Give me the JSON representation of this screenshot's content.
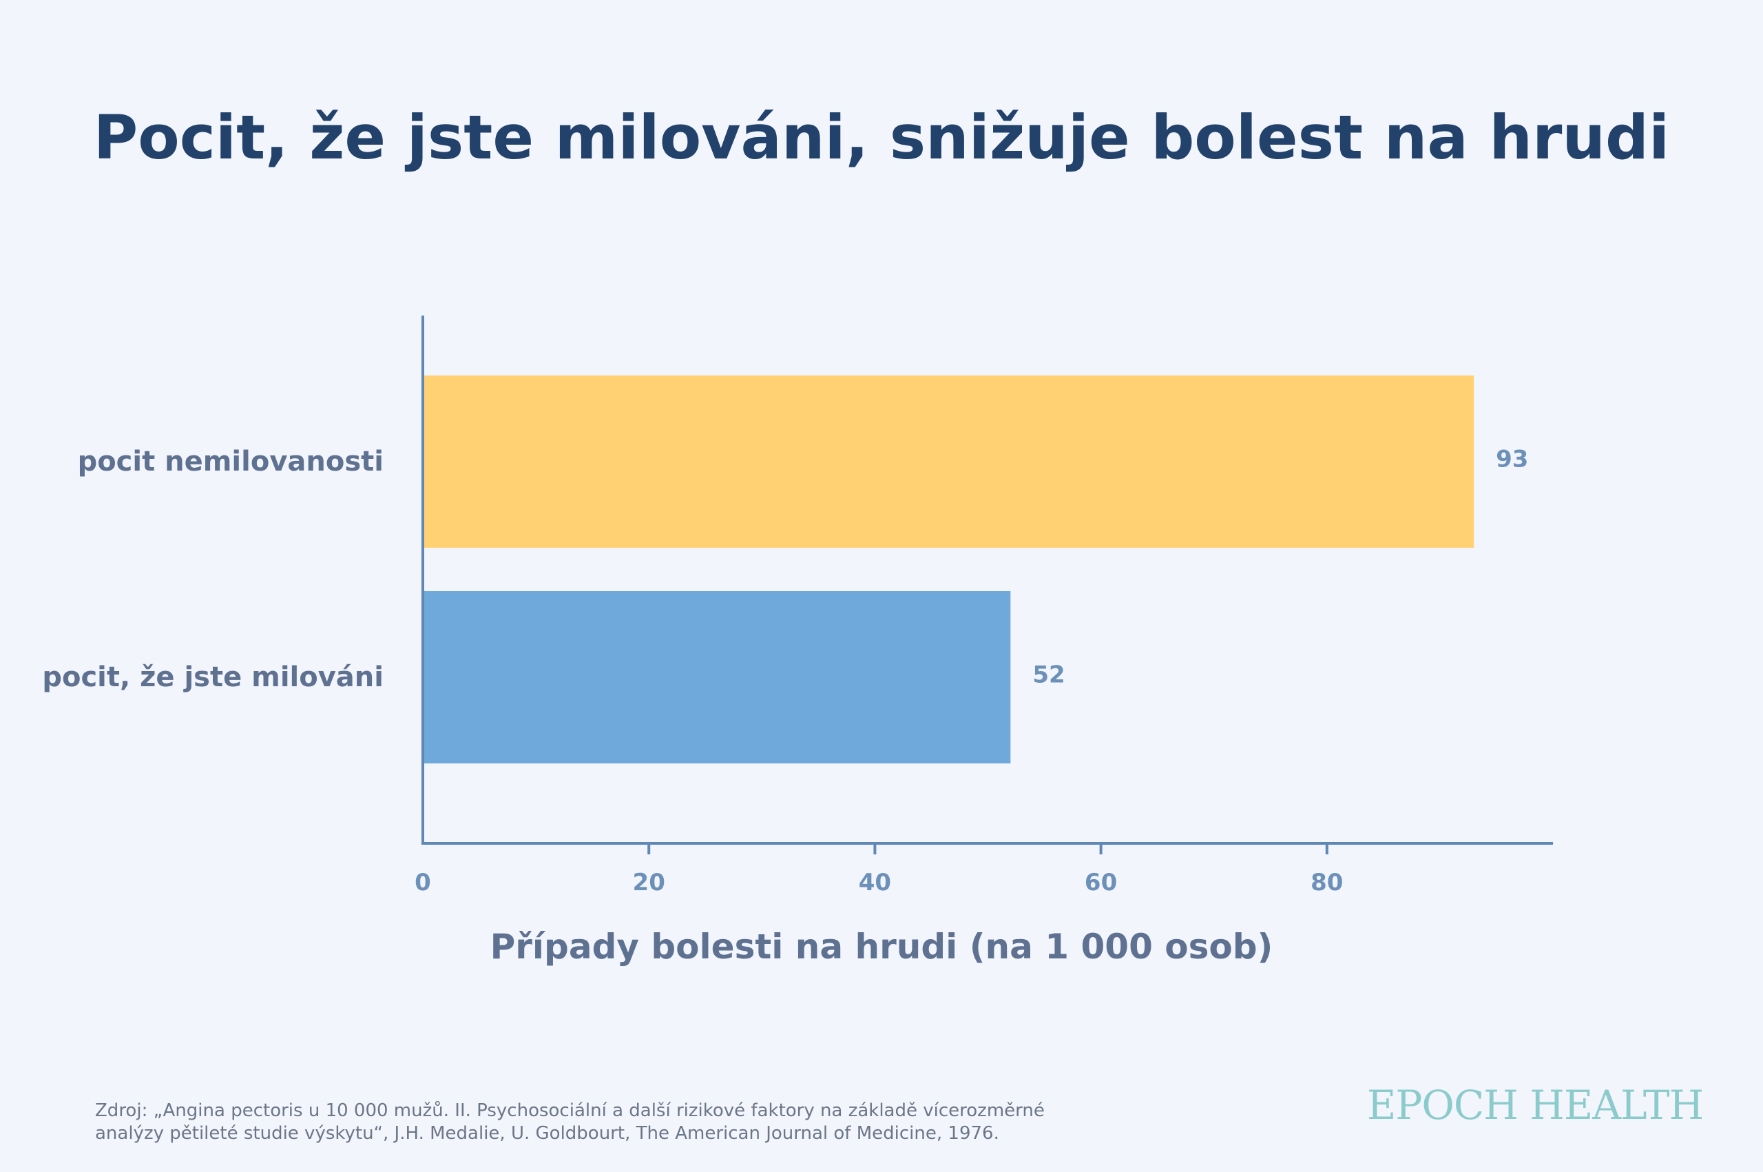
{
  "chart_data": {
    "type": "bar",
    "orientation": "horizontal",
    "title": "Pocit, že jste milováni, snižuje bolest na hrudi",
    "xlabel": "Případy bolesti na hrudi (na 1 000 osob)",
    "ylabel": "",
    "categories": [
      "pocit nemilovanosti",
      "pocit, že jste milováni"
    ],
    "values": [
      93,
      52
    ],
    "data_labels": [
      "93",
      "52"
    ],
    "colors": [
      "#ffd173",
      "#6fa8db"
    ],
    "xlim": [
      0,
      100
    ],
    "xticks": [
      0,
      20,
      40,
      60,
      80
    ],
    "grid": false,
    "legend": "none"
  },
  "colors": {
    "background": "#f2f5fc",
    "title": "#23426b",
    "label": "#5f7190",
    "axis": "#5f88b7",
    "tick_label": "#6c90b8",
    "brand": "#8ccbcb"
  },
  "source": "Zdroj: „Angina pectoris u 10 000 mužů. II. Psychosociální a další rizikové faktory na základě vícerozměrné analýzy pětileté studie výskytu“, J.H. Medalie, U. Goldbourt, The American Journal of Medicine, 1976.",
  "brand": "EPOCH HEALTH"
}
